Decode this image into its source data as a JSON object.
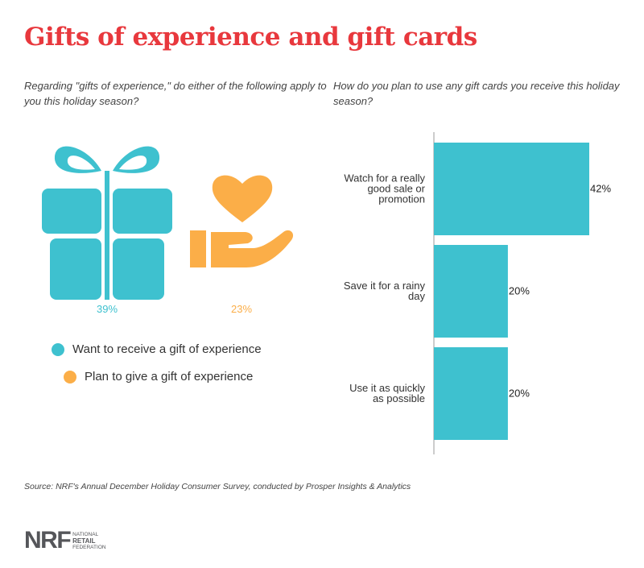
{
  "title": "Gifts of experience and gift cards",
  "colors": {
    "title": "#e8383d",
    "teal": "#3ec1cf",
    "orange": "#fbae48",
    "axis": "#999999"
  },
  "left_panel": {
    "question": "Regarding \"gifts of experience,\" do either of the following apply to you this holiday season?",
    "icons": [
      {
        "name": "gift-icon",
        "value_label": "39%",
        "value": 39
      },
      {
        "name": "heart-in-hand-icon",
        "value_label": "23%",
        "value": 23
      }
    ],
    "legend": [
      {
        "label": "Want to receive a gift of experience",
        "color": "#3ec1cf"
      },
      {
        "label": "Plan to give a gift of experience",
        "color": "#fbae48"
      }
    ]
  },
  "right_panel": {
    "question": "How do you plan to use any gift cards you receive this holiday season?"
  },
  "chart_data": [
    {
      "type": "pictogram",
      "categories": [
        "Want to receive a gift of experience",
        "Plan to give a gift of experience"
      ],
      "values": [
        39,
        23
      ],
      "value_labels": [
        "39%",
        "23%"
      ],
      "unit": "%"
    },
    {
      "type": "bar",
      "orientation": "horizontal",
      "categories": [
        [
          "Watch for a really",
          "good sale or",
          "promotion"
        ],
        [
          "Save it for a rainy",
          "day"
        ],
        [
          "Use it as quickly",
          "as possible"
        ]
      ],
      "values": [
        42,
        20,
        20
      ],
      "value_labels": [
        "42%",
        "20%",
        "20%"
      ],
      "unit": "%",
      "xlim": [
        0,
        42
      ],
      "grid": false,
      "color": "#3ec1cf"
    }
  ],
  "source": "Source:  NRF's Annual December Holiday Consumer Survey, conducted by Prosper Insights & Analytics",
  "logo": {
    "mark": "NRF",
    "lines": [
      "NATIONAL",
      "RETAIL",
      "FEDERATION"
    ],
    "tm": "®"
  }
}
